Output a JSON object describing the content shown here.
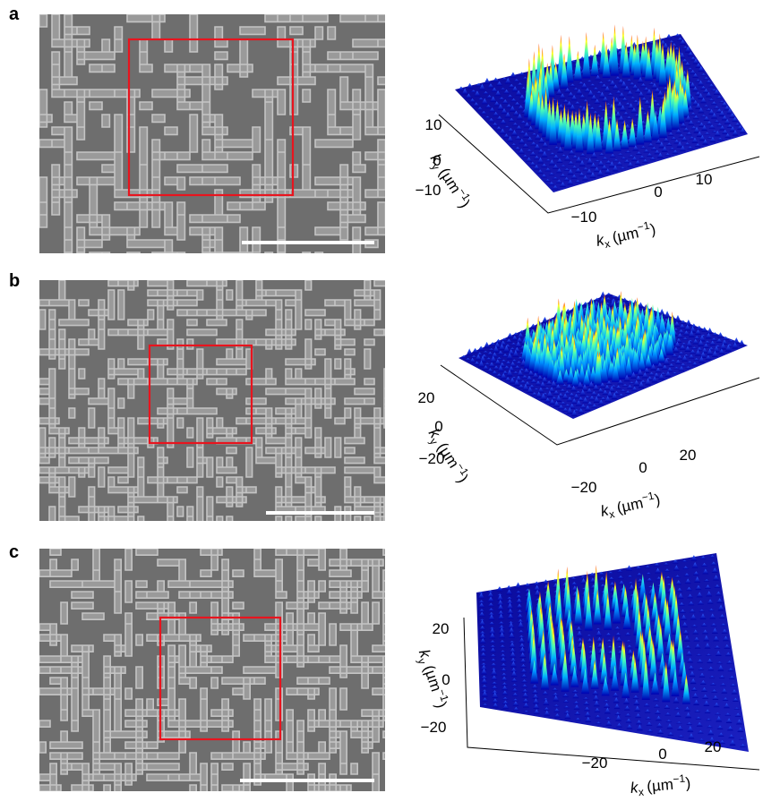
{
  "panels": [
    {
      "label": "a",
      "ky_ticks": [
        "10",
        "0",
        "−10"
      ],
      "kx_ticks": [
        "−10",
        "0",
        "10"
      ]
    },
    {
      "label": "b",
      "ky_ticks": [
        "20",
        "0",
        "−20"
      ],
      "kx_ticks": [
        "−20",
        "0",
        "20"
      ]
    },
    {
      "label": "c",
      "ky_ticks": [
        "20",
        "0",
        "−20"
      ],
      "kx_ticks": [
        "−20",
        "0",
        "20"
      ]
    }
  ],
  "axis_label": {
    "symbol": "k",
    "ky_sub": "y",
    "kx_sub": "x",
    "unit_open": "(µm",
    "exponent": "−1",
    "unit_close": ")"
  }
}
